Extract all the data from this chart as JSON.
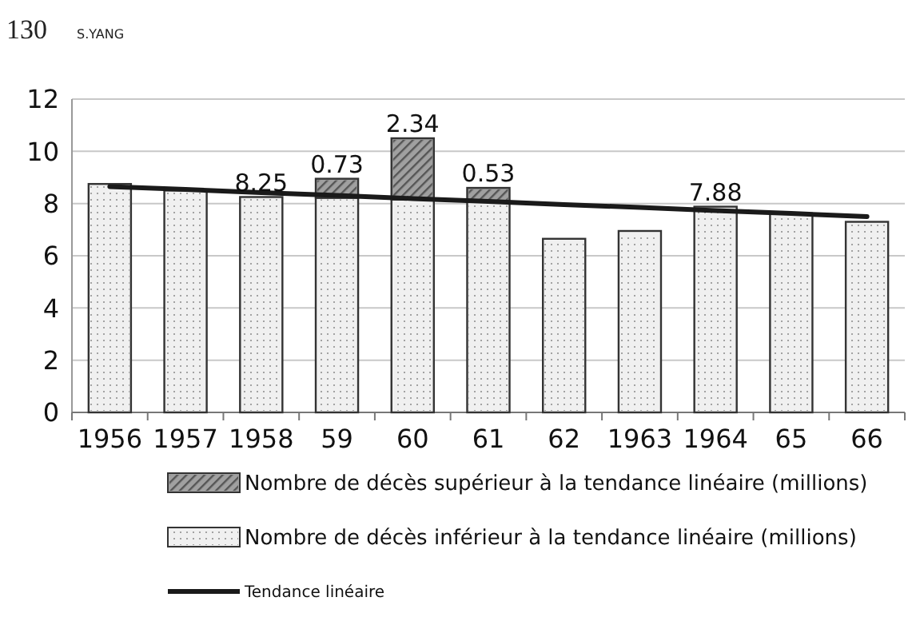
{
  "chart_data": {
    "type": "bar",
    "stacked": true,
    "categories": [
      "1956",
      "1957",
      "1958",
      "59",
      "60",
      "61",
      "62",
      "1963",
      "1964",
      "65",
      "66"
    ],
    "series": [
      {
        "name": "Nombre de décès inférieur à la tendance linéaire (millions)",
        "color": "#f0f0f0",
        "values": [
          8.75,
          8.5,
          8.25,
          8.22,
          8.16,
          8.07,
          6.65,
          6.95,
          7.88,
          7.6,
          7.3
        ],
        "value_labels": [
          null,
          null,
          "8.25",
          null,
          null,
          null,
          null,
          null,
          "7.88",
          null,
          null
        ]
      },
      {
        "name": "Nombre de décès supérieur à la tendance linéaire (millions)",
        "color": "#a0a0a0",
        "values": [
          null,
          null,
          null,
          0.73,
          2.34,
          0.53,
          null,
          null,
          null,
          null,
          null
        ],
        "value_labels": [
          null,
          null,
          null,
          "0.73",
          "2.34",
          "0.53",
          null,
          null,
          null,
          null,
          null
        ]
      },
      {
        "name": "Tendance linéaire",
        "type": "line",
        "color": "#1a1a1a",
        "values": [
          8.65,
          8.54,
          8.42,
          8.31,
          8.19,
          8.08,
          7.96,
          7.85,
          7.73,
          7.62,
          7.5
        ]
      }
    ],
    "ylim": [
      0,
      12
    ],
    "yticks": [
      0,
      2,
      4,
      6,
      8,
      10,
      12
    ],
    "grid": "y",
    "legend": "bottom",
    "annotations": [
      "130",
      "S.YANG"
    ]
  }
}
